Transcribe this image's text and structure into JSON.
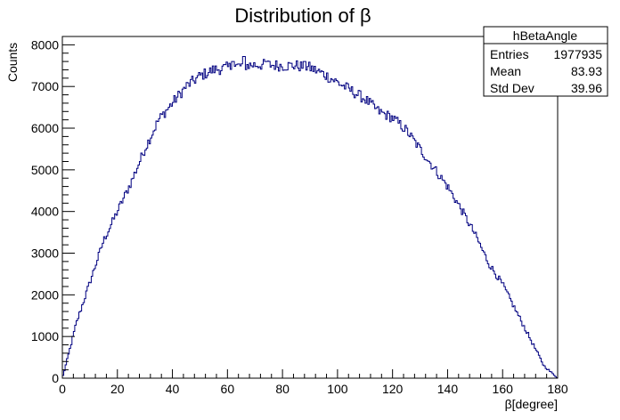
{
  "chart_data": {
    "type": "histogram",
    "title": "Distribution of β",
    "xlabel": "β[degree]",
    "ylabel": "Counts",
    "xlim": [
      0,
      180
    ],
    "ylim": [
      0,
      8200
    ],
    "x_ticks": [
      0,
      20,
      40,
      60,
      80,
      100,
      120,
      140,
      160,
      180
    ],
    "y_ticks": [
      0,
      1000,
      2000,
      3000,
      4000,
      5000,
      6000,
      7000,
      8000
    ],
    "grid": false,
    "line_color": "#000080",
    "series": [
      {
        "bin_width": 0.5,
        "curve_points": [
          [
            0,
            0
          ],
          [
            2,
            500
          ],
          [
            5,
            1300
          ],
          [
            10,
            2300
          ],
          [
            15,
            3300
          ],
          [
            20,
            4000
          ],
          [
            25,
            4700
          ],
          [
            30,
            5500
          ],
          [
            35,
            6200
          ],
          [
            40,
            6600
          ],
          [
            45,
            7000
          ],
          [
            50,
            7250
          ],
          [
            55,
            7400
          ],
          [
            60,
            7450
          ],
          [
            65,
            7500
          ],
          [
            70,
            7520
          ],
          [
            75,
            7520
          ],
          [
            80,
            7500
          ],
          [
            85,
            7500
          ],
          [
            90,
            7450
          ],
          [
            95,
            7300
          ],
          [
            100,
            7100
          ],
          [
            105,
            6900
          ],
          [
            110,
            6700
          ],
          [
            115,
            6400
          ],
          [
            120,
            6250
          ],
          [
            125,
            5950
          ],
          [
            130,
            5500
          ],
          [
            135,
            5050
          ],
          [
            140,
            4600
          ],
          [
            145,
            4050
          ],
          [
            150,
            3450
          ],
          [
            155,
            2750
          ],
          [
            160,
            2250
          ],
          [
            165,
            1600
          ],
          [
            170,
            950
          ],
          [
            175,
            300
          ],
          [
            180,
            0
          ]
        ],
        "spikes": [
          [
            66,
            7720
          ],
          [
            88,
            7600
          ],
          [
            62,
            7600
          ],
          [
            74,
            7600
          ]
        ]
      }
    ]
  },
  "stats_box": {
    "name": "hBetaAngle",
    "rows": [
      {
        "label": "Entries",
        "value": "1977935"
      },
      {
        "label": "Mean",
        "value": "83.93"
      },
      {
        "label": "Std Dev",
        "value": "39.96"
      }
    ]
  }
}
